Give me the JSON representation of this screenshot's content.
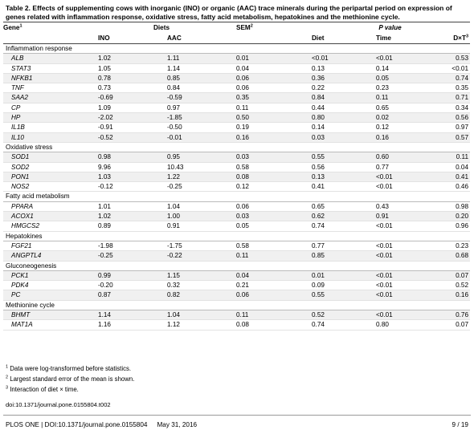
{
  "caption": {
    "label": "Table 2.",
    "text": "Effects of supplementing cows with inorganic (INO) or organic (AAC) trace minerals during the peripartal period on expression of genes related with inflammation response, oxidative stress, fatty acid metabolism, hepatokines and the methionine cycle."
  },
  "header": {
    "gene": "Gene",
    "gene_sup": "1",
    "diets": "Diets",
    "sem": "SEM",
    "sem_sup": "2",
    "pvalue": "P value",
    "ino": "INO",
    "aac": "AAC",
    "diet": "Diet",
    "time": "Time",
    "dxt": "D×T",
    "dxt_sup": "3"
  },
  "groups": [
    {
      "name": "Inflammation response",
      "rows": [
        {
          "gene": "ALB",
          "ino": "1.02",
          "aac": "1.11",
          "sem": "0.01",
          "diet": "<0.01",
          "time": "<0.01",
          "dxt": "0.53"
        },
        {
          "gene": "STAT3",
          "ino": "1.05",
          "aac": "1.14",
          "sem": "0.04",
          "diet": "0.13",
          "time": "0.14",
          "dxt": "<0.01"
        },
        {
          "gene": "NFKB1",
          "ino": "0.78",
          "aac": "0.85",
          "sem": "0.06",
          "diet": "0.36",
          "time": "0.05",
          "dxt": "0.74"
        },
        {
          "gene": "TNF",
          "ino": "0.73",
          "aac": "0.84",
          "sem": "0.06",
          "diet": "0.22",
          "time": "0.23",
          "dxt": "0.35"
        },
        {
          "gene": "SAA2",
          "ino": "-0.69",
          "aac": "-0.59",
          "sem": "0.35",
          "diet": "0.84",
          "time": "0.11",
          "dxt": "0.71"
        },
        {
          "gene": "CP",
          "ino": "1.09",
          "aac": "0.97",
          "sem": "0.11",
          "diet": "0.44",
          "time": "0.65",
          "dxt": "0.34"
        },
        {
          "gene": "HP",
          "ino": "-2.02",
          "aac": "-1.85",
          "sem": "0.50",
          "diet": "0.80",
          "time": "0.02",
          "dxt": "0.56"
        },
        {
          "gene": "IL1B",
          "ino": "-0.91",
          "aac": "-0.50",
          "sem": "0.19",
          "diet": "0.14",
          "time": "0.12",
          "dxt": "0.97"
        },
        {
          "gene": "IL10",
          "ino": "-0.52",
          "aac": "-0.01",
          "sem": "0.16",
          "diet": "0.03",
          "time": "0.16",
          "dxt": "0.57"
        }
      ]
    },
    {
      "name": "Oxidative stress",
      "rows": [
        {
          "gene": "SOD1",
          "ino": "0.98",
          "aac": "0.95",
          "sem": "0.03",
          "diet": "0.55",
          "time": "0.60",
          "dxt": "0.11"
        },
        {
          "gene": "SOD2",
          "ino": "9.96",
          "aac": "10.43",
          "sem": "0.58",
          "diet": "0.56",
          "time": "0.77",
          "dxt": "0.04"
        },
        {
          "gene": "PON1",
          "ino": "1.03",
          "aac": "1.22",
          "sem": "0.08",
          "diet": "0.13",
          "time": "<0.01",
          "dxt": "0.41"
        },
        {
          "gene": "NOS2",
          "ino": "-0.12",
          "aac": "-0.25",
          "sem": "0.12",
          "diet": "0.41",
          "time": "<0.01",
          "dxt": "0.46"
        }
      ]
    },
    {
      "name": "Fatty acid metabolism",
      "rows": [
        {
          "gene": "PPARA",
          "ino": "1.01",
          "aac": "1.04",
          "sem": "0.06",
          "diet": "0.65",
          "time": "0.43",
          "dxt": "0.98"
        },
        {
          "gene": "ACOX1",
          "ino": "1.02",
          "aac": "1.00",
          "sem": "0.03",
          "diet": "0.62",
          "time": "0.91",
          "dxt": "0.20"
        },
        {
          "gene": "HMGCS2",
          "ino": "0.89",
          "aac": "0.91",
          "sem": "0.05",
          "diet": "0.74",
          "time": "<0.01",
          "dxt": "0.96"
        }
      ]
    },
    {
      "name": "Hepatokines",
      "rows": [
        {
          "gene": "FGF21",
          "ino": "-1.98",
          "aac": "-1.75",
          "sem": "0.58",
          "diet": "0.77",
          "time": "<0.01",
          "dxt": "0.23"
        },
        {
          "gene": "ANGPTL4",
          "ino": "-0.25",
          "aac": "-0.22",
          "sem": "0.11",
          "diet": "0.85",
          "time": "<0.01",
          "dxt": "0.68"
        }
      ]
    },
    {
      "name": "Gluconeogenesis",
      "rows": [
        {
          "gene": "PCK1",
          "ino": "0.99",
          "aac": "1.15",
          "sem": "0.04",
          "diet": "0.01",
          "time": "<0.01",
          "dxt": "0.07"
        },
        {
          "gene": "PDK4",
          "ino": "-0.20",
          "aac": "0.32",
          "sem": "0.21",
          "diet": "0.09",
          "time": "<0.01",
          "dxt": "0.52"
        },
        {
          "gene": "PC",
          "ino": "0.87",
          "aac": "0.82",
          "sem": "0.06",
          "diet": "0.55",
          "time": "<0.01",
          "dxt": "0.16"
        }
      ]
    },
    {
      "name": "Methionine cycle",
      "rows": [
        {
          "gene": "BHMT",
          "ino": "1.14",
          "aac": "1.04",
          "sem": "0.11",
          "diet": "0.52",
          "time": "<0.01",
          "dxt": "0.76"
        },
        {
          "gene": "MAT1A",
          "ino": "1.16",
          "aac": "1.12",
          "sem": "0.08",
          "diet": "0.74",
          "time": "0.80",
          "dxt": "0.07"
        }
      ]
    }
  ],
  "footnotes": [
    {
      "sup": "1",
      "text": "Data were log-transformed before statistics."
    },
    {
      "sup": "2",
      "text": "Largest standard error of the mean is shown."
    },
    {
      "sup": "3",
      "text": "Interaction of diet × time."
    }
  ],
  "doi": "doi:10.1371/journal.pone.0155804.t002",
  "footer": {
    "journal": "PLOS ONE | DOI:10.1371/journal.pone.0155804",
    "date": "May 31, 2016",
    "page": "9 / 19"
  }
}
